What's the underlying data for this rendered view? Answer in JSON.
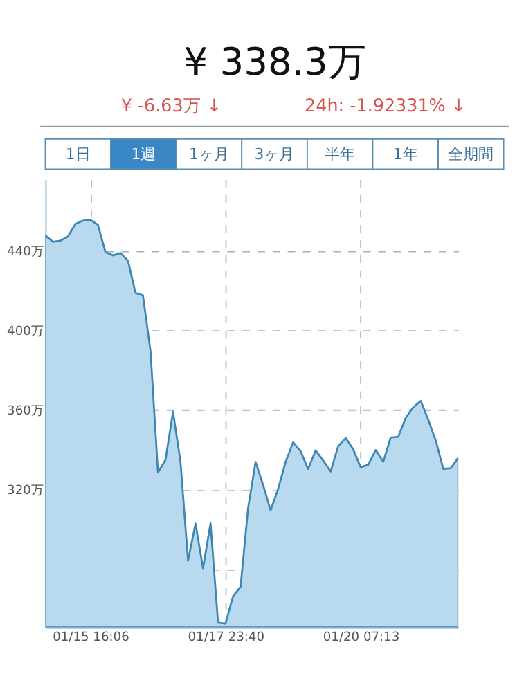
{
  "chart_data": {
    "type": "area",
    "title": "¥ 338.3万",
    "annotations": [
      "¥ -6.63万 ↓",
      "24h: -1.92331% ↓",
      "1日",
      "1週",
      "1ヶ月",
      "3ヶ月",
      "半年",
      "1年",
      "全期間"
    ],
    "categories": [
      null,
      null,
      null,
      null,
      null,
      null,
      "01/15 16:06",
      null,
      null,
      null,
      null,
      null,
      null,
      null,
      null,
      null,
      null,
      null,
      null,
      null,
      null,
      null,
      null,
      null,
      "01/17 23:40",
      null,
      null,
      null,
      null,
      null,
      null,
      null,
      null,
      null,
      null,
      null,
      null,
      null,
      null,
      null,
      null,
      null,
      "01/20 07:13",
      null,
      null,
      null,
      null,
      null,
      null,
      null,
      null,
      null,
      null,
      null,
      null,
      null
    ],
    "series": [
      {
        "color": "#3d85b5",
        "values": [
          447.8,
          444.6,
          445.1,
          447.2,
          453.5,
          455.2,
          455.6,
          453.1,
          439.4,
          437.7,
          438.9,
          435.1,
          418.9,
          417.6,
          389.8,
          328.6,
          334.9,
          359.2,
          333.9,
          284.3,
          302.9,
          280.5,
          303.1,
          253.1,
          252.7,
          266.4,
          271.2,
          310.7,
          333.9,
          322.3,
          309.6,
          320.3,
          333.9,
          343.8,
          339.2,
          330.4,
          339.7,
          334.6,
          329.1,
          341.8,
          345.9,
          340.3,
          331.2,
          332.5,
          339.9,
          334.0,
          346.2,
          346.6,
          356.1,
          361.4,
          364.6,
          355.1,
          344.6,
          330.4,
          330.8,
          336.1
        ]
      }
    ],
    "ylim": [
      250.8,
      476
    ],
    "yticks": [
      {
        "value": 280,
        "label": null
      },
      {
        "value": 320,
        "label": "320万"
      },
      {
        "value": 360,
        "label": "360万"
      },
      {
        "value": 400,
        "label": "400万"
      },
      {
        "value": 440,
        "label": "440万"
      }
    ],
    "grid": true,
    "marker": "none"
  }
}
